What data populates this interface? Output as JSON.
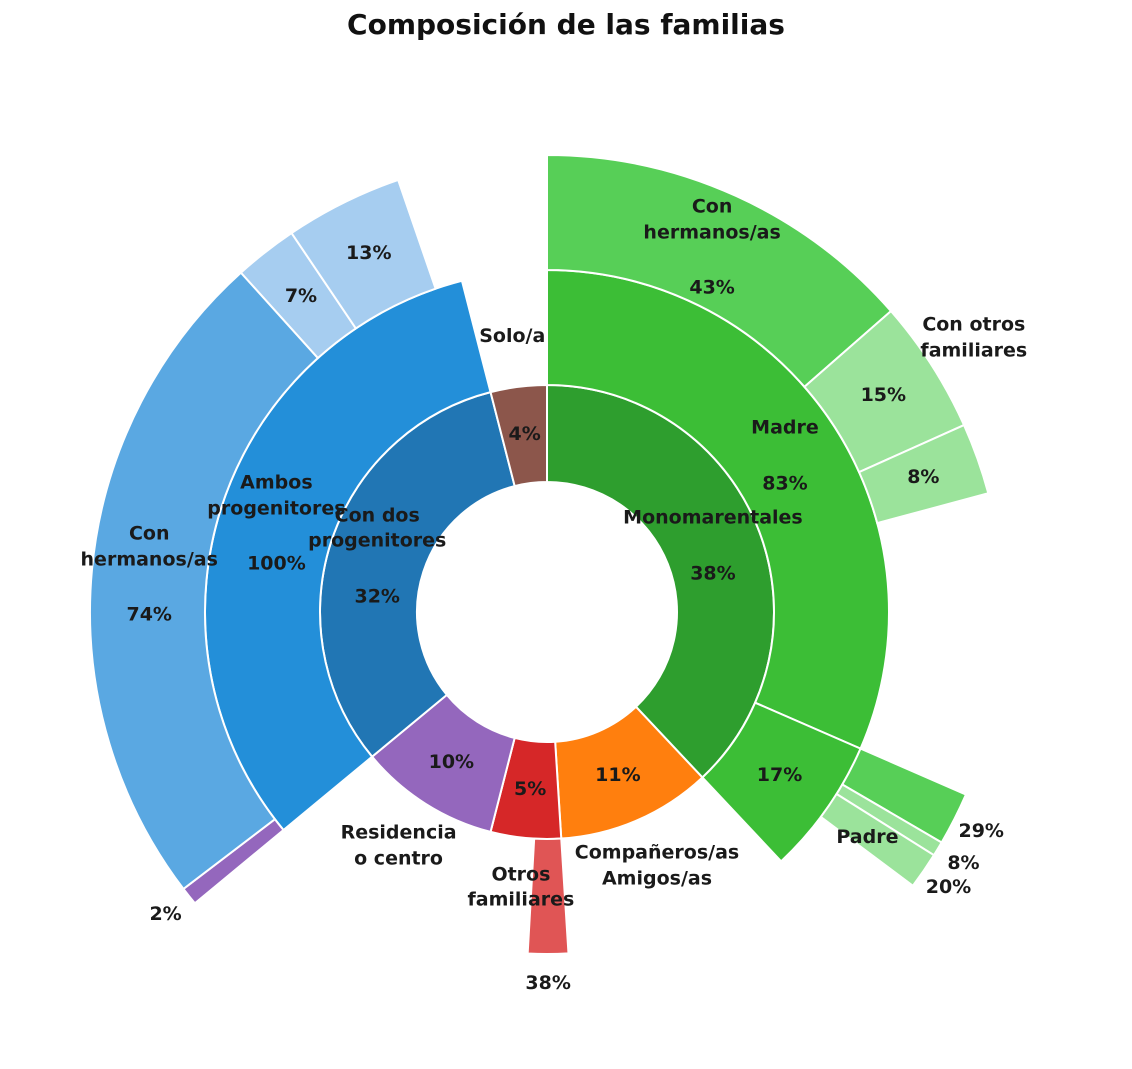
{
  "chart_data": {
    "type": "sunburst",
    "title": "Composición de las familias",
    "children": [
      {
        "name": "Monomarentales",
        "value": 38,
        "value_label": "38%",
        "color": "#2e9e2e",
        "children": [
          {
            "name": "Madre",
            "value": 83,
            "value_label": "83%",
            "color": "#3cbe36",
            "children": [
              {
                "name": "Con\nhermanos/as",
                "value": 43,
                "value_label": "43%",
                "color": "#57cf57"
              },
              {
                "name": "Con otros\nfamiliares",
                "value": 15,
                "value_label": "15%",
                "color": "#9be39b"
              },
              {
                "value": 8,
                "value_label": "8%",
                "color": "#9be39b"
              }
            ]
          },
          {
            "name": "Padre",
            "value": 17,
            "value_label": "17%",
            "color": "#3cbe36",
            "children": [
              {
                "value": 29,
                "value_label": "29%",
                "color": "#57cf57"
              },
              {
                "value": 8,
                "value_label": "8%",
                "color": "#9be39b"
              },
              {
                "value": 20,
                "value_label": "20%",
                "color": "#9be39b"
              }
            ]
          }
        ]
      },
      {
        "name": "Compañeros/as\nAmigos/as",
        "value": 11,
        "value_label": "11%",
        "color": "#ff7f0e"
      },
      {
        "name": "Otros\nfamiliares",
        "value": 5,
        "value_label": "5%",
        "color": "#d62728",
        "children": [
          {
            "value": 38,
            "value_label": "38%",
            "color": "#e05555"
          }
        ]
      },
      {
        "name": "Residencia\no centro",
        "value": 10,
        "value_label": "10%",
        "color": "#9467bd"
      },
      {
        "name": "Con dos\nprogenitores",
        "value": 32,
        "value_label": "32%",
        "color": "#2176b4",
        "children": [
          {
            "name": "Ambos\nprogenitores",
            "value": 100,
            "value_label": "100%",
            "color": "#238fd9",
            "children": [
              {
                "value": 2,
                "value_label": "2%",
                "color": "#9467bd"
              },
              {
                "name": "Con\nhermanos/as",
                "value": 74,
                "value_label": "74%",
                "color": "#5aa8e2"
              },
              {
                "value": 7,
                "value_label": "7%",
                "color": "#a6cdf0"
              },
              {
                "value": 13,
                "value_label": "13%",
                "color": "#a6cdf0"
              }
            ]
          }
        ]
      },
      {
        "name": "Solo/a",
        "value": 4,
        "value_label": "4%",
        "color": "#8c564b"
      }
    ]
  }
}
